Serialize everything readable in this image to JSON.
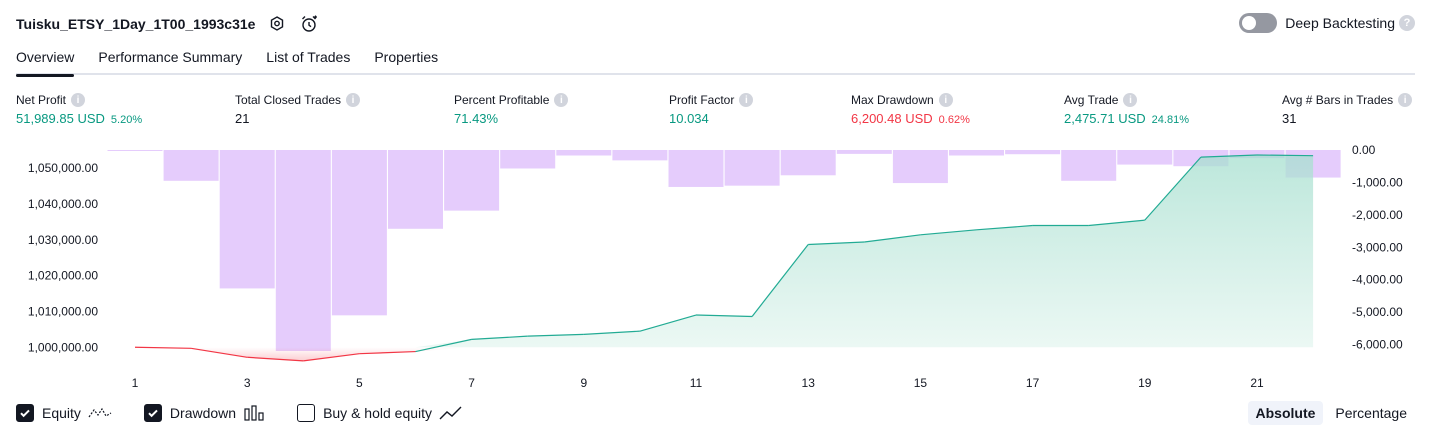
{
  "header": {
    "title": "Tuisku_ETSY_1Day_1T00_1993c31e",
    "deep_backtesting_label": "Deep Backtesting"
  },
  "tabs": [
    {
      "label": "Overview",
      "active": true
    },
    {
      "label": "Performance Summary"
    },
    {
      "label": "List of Trades"
    },
    {
      "label": "Properties"
    }
  ],
  "metrics": [
    {
      "label": "Net Profit",
      "value": "51,989.85 USD",
      "sub": "5.20%",
      "color": "#089981"
    },
    {
      "label": "Total Closed Trades",
      "value": "21",
      "sub": "",
      "color": "#131722"
    },
    {
      "label": "Percent Profitable",
      "value": "71.43%",
      "sub": "",
      "color": "#089981"
    },
    {
      "label": "Profit Factor",
      "value": "10.034",
      "sub": "",
      "color": "#089981"
    },
    {
      "label": "Max Drawdown",
      "value": "6,200.48 USD",
      "sub": "0.62%",
      "color": "#f23645"
    },
    {
      "label": "Avg Trade",
      "value": "2,475.71 USD",
      "sub": "24.81%",
      "color": "#089981"
    },
    {
      "label": "Avg # Bars in Trades",
      "value": "31",
      "sub": "",
      "color": "#131722"
    }
  ],
  "chart_data": {
    "type": "line",
    "x_ticks": [
      "1",
      "3",
      "5",
      "7",
      "9",
      "11",
      "13",
      "15",
      "17",
      "19",
      "21"
    ],
    "left_axis": {
      "ticks": [
        "1,050,000.00",
        "1,040,000.00",
        "1,030,000.00",
        "1,020,000.00",
        "1,010,000.00",
        "1,000,000.00"
      ],
      "ylim": [
        997000,
        1053000
      ]
    },
    "right_axis": {
      "ticks": [
        "0.00",
        "-1,000.00",
        "-2,000.00",
        "-3,000.00",
        "-4,000.00",
        "-5,000.00",
        "-6,000.00"
      ],
      "ylim": [
        -6200,
        0
      ]
    },
    "equity": {
      "x": [
        1,
        2,
        3,
        4,
        5,
        6,
        7,
        8,
        9,
        10,
        11,
        12,
        13,
        14,
        15,
        16,
        17,
        18,
        19,
        20,
        21,
        22
      ],
      "values": [
        1000000,
        999700,
        997200,
        996200,
        998200,
        998800,
        1002200,
        1003100,
        1003600,
        1004500,
        1009000,
        1008600,
        1028700,
        1029400,
        1031400,
        1032800,
        1034000,
        1034000,
        1035500,
        1053100,
        1053700,
        1053500
      ],
      "baseline": 1000000
    },
    "drawdown": {
      "x": [
        1,
        2,
        3,
        4,
        5,
        6,
        7,
        8,
        9,
        10,
        11,
        12,
        13,
        14,
        15,
        16,
        17,
        18,
        19,
        20,
        21,
        22
      ],
      "values": [
        -20,
        -950,
        -4270,
        -6200,
        -5100,
        -2430,
        -1870,
        -570,
        -170,
        -320,
        -1140,
        -1100,
        -780,
        -120,
        -1020,
        -170,
        -130,
        -950,
        -450,
        -500,
        -250,
        -850
      ]
    },
    "colors": {
      "equity_up": "#22ab94",
      "equity_down": "#f23645",
      "equity_fill": "#d1ede6",
      "drawdown_bar": "#e1c3fb"
    }
  },
  "legend": [
    {
      "label": "Equity",
      "checked": true,
      "icon": "equity-line-icon"
    },
    {
      "label": "Drawdown",
      "checked": true,
      "icon": "drawdown-bars-icon"
    },
    {
      "label": "Buy & hold equity",
      "checked": false,
      "icon": "buy-hold-line-icon"
    }
  ],
  "view_toggle": {
    "options": [
      "Absolute",
      "Percentage"
    ],
    "selected": "Absolute"
  }
}
